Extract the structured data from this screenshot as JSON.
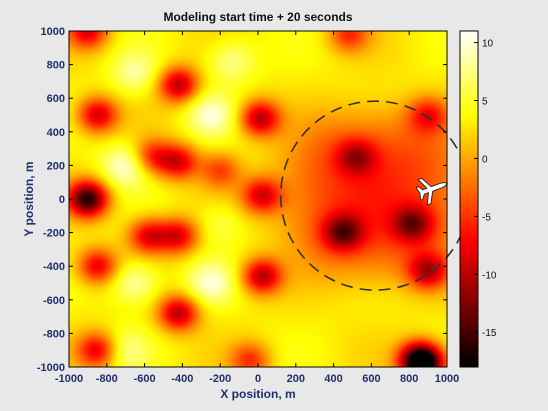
{
  "chart_data": {
    "type": "heatmap",
    "title": "Modeling start time + 20 seconds",
    "xlabel": "X position, m",
    "ylabel": "Y position, m",
    "xlim": [
      -1000,
      1000
    ],
    "ylim": [
      -1000,
      1000
    ],
    "xticks": [
      -1000,
      -800,
      -600,
      -400,
      -200,
      0,
      200,
      400,
      600,
      800,
      1000
    ],
    "yticks": [
      -1000,
      -800,
      -600,
      -400,
      -200,
      0,
      200,
      400,
      600,
      800,
      1000
    ],
    "colorbar": {
      "range": [
        -18,
        11
      ],
      "ticks": [
        10,
        5,
        0,
        -5,
        -10,
        -15
      ],
      "colormap": "hot"
    },
    "grid": false,
    "hotspots": [
      {
        "x": -900,
        "y": 1000,
        "v": -8
      },
      {
        "x": -850,
        "y": 500,
        "v": -9
      },
      {
        "x": -900,
        "y": 0,
        "v": -16
      },
      {
        "x": -850,
        "y": -400,
        "v": -8
      },
      {
        "x": -850,
        "y": -900,
        "v": -8
      },
      {
        "x": -420,
        "y": 680,
        "v": -10
      },
      {
        "x": -560,
        "y": 250,
        "v": -6
      },
      {
        "x": -420,
        "y": 220,
        "v": -8
      },
      {
        "x": -580,
        "y": -220,
        "v": -8
      },
      {
        "x": -420,
        "y": -220,
        "v": -8
      },
      {
        "x": -420,
        "y": -680,
        "v": -10
      },
      {
        "x": 10,
        "y": 480,
        "v": -10
      },
      {
        "x": -200,
        "y": 170,
        "v": -4
      },
      {
        "x": 20,
        "y": 20,
        "v": -8
      },
      {
        "x": 20,
        "y": -460,
        "v": -10
      },
      {
        "x": -40,
        "y": -960,
        "v": -5
      },
      {
        "x": 480,
        "y": 980,
        "v": -5
      },
      {
        "x": 900,
        "y": 500,
        "v": -5
      },
      {
        "x": 520,
        "y": 250,
        "v": -5
      },
      {
        "x": 450,
        "y": -200,
        "v": -8
      },
      {
        "x": 820,
        "y": -150,
        "v": -7
      },
      {
        "x": 900,
        "y": -430,
        "v": -8
      },
      {
        "x": 850,
        "y": -960,
        "v": -16
      },
      {
        "x": 900,
        "y": -980,
        "v": -8
      }
    ],
    "warmspots": [
      {
        "x": -700,
        "y": 200,
        "v": 10
      },
      {
        "x": -650,
        "y": -500,
        "v": 9
      },
      {
        "x": -250,
        "y": 500,
        "v": 9
      },
      {
        "x": -250,
        "y": -500,
        "v": 9
      },
      {
        "x": -650,
        "y": 750,
        "v": 8
      },
      {
        "x": -140,
        "y": 820,
        "v": 8
      },
      {
        "x": -200,
        "y": -150,
        "v": 6
      },
      {
        "x": -700,
        "y": -900,
        "v": 7
      }
    ],
    "region": {
      "cx": 620,
      "cy": 20,
      "r": 500,
      "v": -5,
      "boundary": "dashed"
    },
    "aircraft": {
      "x": 920,
      "y": 60,
      "icon": "airplane-icon",
      "color": "#ffffff"
    }
  }
}
